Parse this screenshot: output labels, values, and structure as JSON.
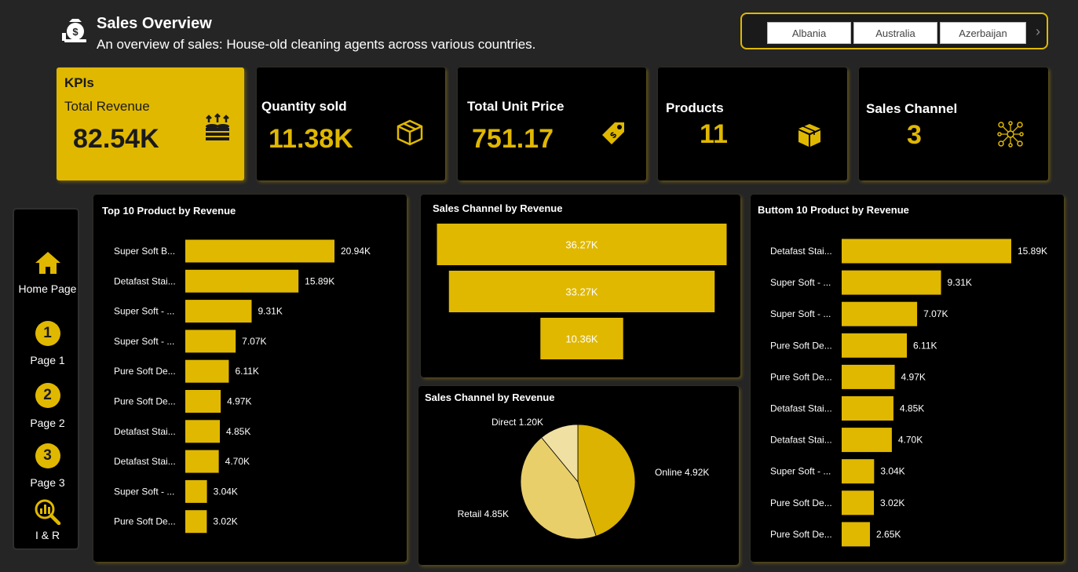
{
  "header": {
    "title": "Sales Overview",
    "subtitle": "An overview of sales: House-old cleaning agents across various countries.",
    "icon": "money-bag-icon"
  },
  "slicer": {
    "countries": [
      "Albania",
      "Australia",
      "Azerbaijan"
    ],
    "next_icon": "chevron-right-icon"
  },
  "kpis": {
    "section_label": "KPIs",
    "total_revenue": {
      "label": "Total Revenue",
      "value": "82.54K",
      "icon": "coins-stack-icon"
    },
    "quantity_sold": {
      "label": "Quantity sold",
      "value": "11.38K",
      "icon": "box-icon"
    },
    "total_unit_price": {
      "label": "Total Unit Price",
      "value": "751.17",
      "icon": "price-tag-icon"
    },
    "products": {
      "label": "Products",
      "value": "11",
      "icon": "package-icon"
    },
    "sales_channel": {
      "label": "Sales Channel",
      "value": "3",
      "icon": "network-icon"
    }
  },
  "nav": {
    "home": "Home Page",
    "page1_num": "1",
    "page1": "Page 1",
    "page2_num": "2",
    "page2": "Page 2",
    "page3_num": "3",
    "page3": "Page 3",
    "ir": "I & R"
  },
  "colors": {
    "accent": "#e0b800",
    "panel": "#000000",
    "background": "#252525"
  },
  "chart_data": [
    {
      "type": "bar",
      "orientation": "horizontal",
      "title": "Top 10 Product by Revenue",
      "categories": [
        "Super Soft B...",
        "Detafast Stai...",
        "Super Soft - ...",
        "Super Soft - ...",
        "Pure Soft De...",
        "Pure Soft De...",
        "Detafast Stai...",
        "Detafast Stai...",
        "Super Soft - ...",
        "Pure Soft De..."
      ],
      "values": [
        20.94,
        15.89,
        9.31,
        7.07,
        6.11,
        4.97,
        4.85,
        4.7,
        3.04,
        3.02
      ],
      "labels": [
        "20.94K",
        "15.89K",
        "9.31K",
        "7.07K",
        "6.11K",
        "4.97K",
        "4.85K",
        "4.70K",
        "3.04K",
        "3.02K"
      ]
    },
    {
      "type": "funnel",
      "title": "Sales Channel by Revenue",
      "values": [
        36.27,
        33.27,
        10.36
      ],
      "labels": [
        "36.27K",
        "33.27K",
        "10.36K"
      ]
    },
    {
      "type": "pie",
      "title": "Sales Channel by Revenue",
      "slices": [
        {
          "name": "Online",
          "value": 4.92,
          "label": "Online 4.92K",
          "color": "#dbb300"
        },
        {
          "name": "Retail",
          "value": 4.85,
          "label": "Retail 4.85K",
          "color": "#e8cf6a"
        },
        {
          "name": "Direct",
          "value": 1.2,
          "label": "Direct 1.20K",
          "color": "#f0e0a2"
        }
      ]
    },
    {
      "type": "bar",
      "orientation": "horizontal",
      "title": "Buttom 10 Product by Revenue",
      "categories": [
        "Detafast Stai...",
        "Super Soft - ...",
        "Super Soft - ...",
        "Pure Soft De...",
        "Pure Soft De...",
        "Detafast Stai...",
        "Detafast Stai...",
        "Super Soft - ...",
        "Pure Soft De...",
        "Pure Soft De..."
      ],
      "values": [
        15.89,
        9.31,
        7.07,
        6.11,
        4.97,
        4.85,
        4.7,
        3.04,
        3.02,
        2.65
      ],
      "labels": [
        "15.89K",
        "9.31K",
        "7.07K",
        "6.11K",
        "4.97K",
        "4.85K",
        "4.70K",
        "3.04K",
        "3.02K",
        "2.65K"
      ]
    }
  ]
}
